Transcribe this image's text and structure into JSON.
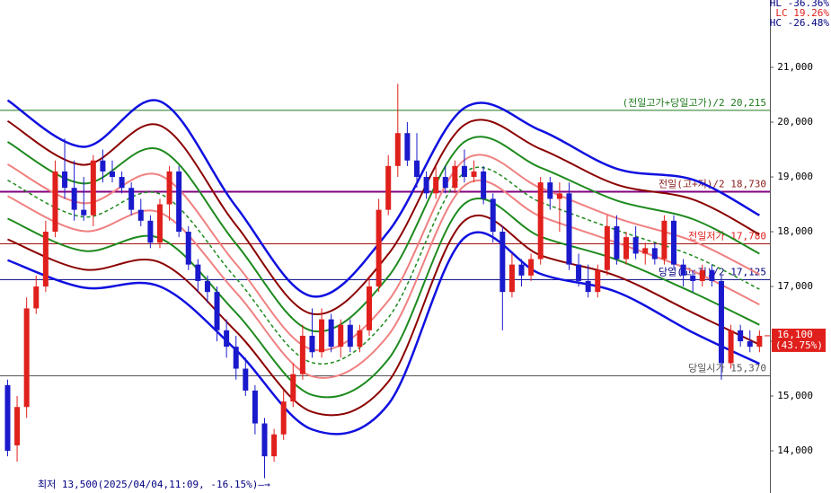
{
  "chart_data": {
    "type": "candlestick",
    "ylim": [
      13230,
      22230
    ],
    "yticks": [
      {
        "value": 14000,
        "label": "14,000"
      },
      {
        "value": 15000,
        "label": "15,000"
      },
      {
        "value": 16000,
        "label": "16,000"
      },
      {
        "value": 17000,
        "label": "17,000"
      },
      {
        "value": 18000,
        "label": "18,000"
      },
      {
        "value": 19000,
        "label": "19,000"
      },
      {
        "value": 20000,
        "label": "20,000"
      },
      {
        "value": 21000,
        "label": "21,000"
      }
    ],
    "xlim": [
      -0.8,
      80.1
    ],
    "up_color": "#e0201c",
    "down_color": "#1a1acc",
    "open": [
      15200,
      14100,
      14800,
      16600,
      17000,
      18000,
      19100,
      18800,
      18400,
      18300,
      19300,
      19100,
      19000,
      18800,
      18400,
      18200,
      17800,
      18500,
      19100,
      18000,
      17400,
      17100,
      16900,
      16200,
      15900,
      15500,
      15100,
      14500,
      13900,
      14300,
      14900,
      15400,
      16100,
      15800,
      16400,
      15900,
      16300,
      15900,
      16200,
      17000,
      18400,
      19200,
      19800,
      19300,
      19000,
      18700,
      19000,
      18800,
      19200,
      19000,
      19100,
      18600,
      18000,
      16900,
      17400,
      17200,
      17500,
      18900,
      18600,
      18700,
      17400,
      17100,
      16900,
      17300,
      18100,
      17500,
      17900,
      17600,
      17700,
      17500,
      18200,
      17400,
      17200,
      17100,
      17300,
      17100,
      15600,
      16200,
      16000,
      15900
    ],
    "high": [
      15300,
      15000,
      16800,
      17200,
      18200,
      19300,
      19700,
      19300,
      19000,
      19400,
      19500,
      19300,
      19100,
      18900,
      18600,
      18300,
      18600,
      19200,
      19200,
      18100,
      17500,
      17200,
      17000,
      16400,
      16100,
      15700,
      15200,
      14600,
      14400,
      15100,
      15600,
      16300,
      16600,
      16600,
      16500,
      16400,
      16400,
      16300,
      17200,
      18600,
      19400,
      20700,
      20000,
      19800,
      19100,
      19200,
      19200,
      19300,
      19500,
      19300,
      19200,
      18700,
      18100,
      17600,
      17500,
      17600,
      19000,
      19000,
      18900,
      18900,
      17600,
      17400,
      17400,
      18300,
      18300,
      18000,
      18100,
      17800,
      17800,
      18300,
      18300,
      17500,
      17300,
      17400,
      17400,
      17200,
      16300,
      16300,
      16200,
      16200
    ],
    "low": [
      13900,
      13800,
      14600,
      16500,
      16900,
      17900,
      18600,
      18200,
      18200,
      18100,
      18900,
      18900,
      18700,
      18300,
      18100,
      17700,
      17700,
      18200,
      17900,
      17300,
      16900,
      16700,
      16000,
      15700,
      15300,
      15000,
      14300,
      13500,
      13800,
      14200,
      14800,
      15300,
      15700,
      15700,
      15800,
      15700,
      15800,
      15800,
      16100,
      16900,
      18300,
      19000,
      19200,
      18800,
      18600,
      18600,
      18700,
      18700,
      18900,
      18900,
      18500,
      17800,
      16200,
      16800,
      17000,
      17100,
      17400,
      18400,
      18000,
      17300,
      17000,
      16800,
      16800,
      17200,
      17400,
      17400,
      17500,
      17400,
      17400,
      17400,
      17300,
      17000,
      16900,
      17000,
      17000,
      15300,
      15500,
      15900,
      15800,
      15800
    ],
    "close": [
      14000,
      14800,
      16600,
      17000,
      18000,
      19100,
      18800,
      18400,
      18300,
      19300,
      19100,
      19000,
      18800,
      18400,
      18200,
      17800,
      18500,
      19100,
      18000,
      17400,
      17100,
      16900,
      16200,
      15900,
      15500,
      15100,
      14500,
      13900,
      14300,
      14900,
      15400,
      16100,
      15800,
      16400,
      15900,
      16300,
      15900,
      16200,
      17000,
      18400,
      19200,
      19800,
      19300,
      19000,
      18700,
      19000,
      18800,
      19200,
      19000,
      19100,
      18600,
      18000,
      16900,
      17400,
      17200,
      17500,
      18900,
      18600,
      18700,
      17400,
      17100,
      16900,
      17300,
      18100,
      17500,
      17900,
      17600,
      17700,
      17500,
      18200,
      17400,
      17200,
      17100,
      17300,
      17100,
      15600,
      16200,
      16000,
      15900,
      16100
    ],
    "bands": {
      "x": [
        0,
        8,
        16,
        24,
        32,
        40,
        48,
        56,
        64,
        72,
        79
      ],
      "series": [
        {
          "color": "#1010e0",
          "width": 2.5,
          "values": [
            20400,
            19550,
            20380,
            18460,
            16820,
            18000,
            20260,
            19850,
            19150,
            18950,
            18300
          ]
        },
        {
          "color": "#8b0000",
          "width": 2,
          "values": [
            20020,
            19220,
            19940,
            18120,
            16500,
            17590,
            19950,
            19510,
            18860,
            18590,
            17950
          ]
        },
        {
          "color": "#1e8a1e",
          "width": 2,
          "values": [
            19640,
            18880,
            19500,
            17780,
            16190,
            17180,
            19640,
            19170,
            18570,
            18230,
            17600
          ]
        },
        {
          "color": "#f08080",
          "width": 2,
          "values": [
            19230,
            18520,
            19030,
            17410,
            15850,
            16740,
            19310,
            18800,
            18250,
            17830,
            17220
          ]
        },
        {
          "color": "#1e8a1e",
          "width": 1.5,
          "dashed": true,
          "values": [
            18940,
            18270,
            18690,
            17150,
            15610,
            16430,
            19080,
            18540,
            18030,
            17560,
            16950
          ]
        },
        {
          "color": "#f08080",
          "width": 2,
          "values": [
            18650,
            18010,
            18350,
            16890,
            15360,
            16110,
            18840,
            18280,
            17800,
            17280,
            16670
          ]
        },
        {
          "color": "#1e8a1e",
          "width": 2,
          "values": [
            18240,
            17650,
            17880,
            16520,
            15020,
            15670,
            18510,
            17910,
            17490,
            16890,
            16300
          ]
        },
        {
          "color": "#8b0000",
          "width": 2,
          "values": [
            17860,
            17310,
            17440,
            16180,
            14710,
            15260,
            18200,
            17570,
            17190,
            16520,
            15940
          ]
        },
        {
          "color": "#1010e0",
          "width": 2.5,
          "values": [
            17480,
            16980,
            17000,
            15840,
            14390,
            14850,
            17890,
            17230,
            16900,
            16160,
            15590
          ]
        }
      ]
    },
    "levels": [
      {
        "value": 20215,
        "label": "(전일고가+당일고가)/2 20,215",
        "color": "#1e7a1e",
        "text_color": "#1e7a1e"
      },
      {
        "value": 18730,
        "label": "전일(고+저)/2 18,730",
        "color": "#800080",
        "text_color": "#8b1a1a"
      },
      {
        "value": 17780,
        "label": "전일저가 17,780",
        "color": "#a01010",
        "text_color": "#e0201c"
      },
      {
        "value": 17125,
        "label": "당일(고+저)/2 17,125",
        "color": "#000080",
        "text_color": "#000080"
      },
      {
        "value": 15370,
        "label": "당일시가 15,370",
        "color": "#555555",
        "text_color": "#555555"
      }
    ],
    "stats": [
      {
        "text": "HL -36.36%",
        "color": "#000080"
      },
      {
        "text": "LC  19.26%",
        "color": "#e0201c"
      },
      {
        "text": "HC -26.48%",
        "color": "#000080"
      }
    ],
    "last": {
      "value": 16100,
      "label": "16,100",
      "change": "(43.75%)",
      "color": "#e0201c"
    },
    "low_note": "최저 13,500(2025/04/04,11:09, -16.15%)—→"
  }
}
